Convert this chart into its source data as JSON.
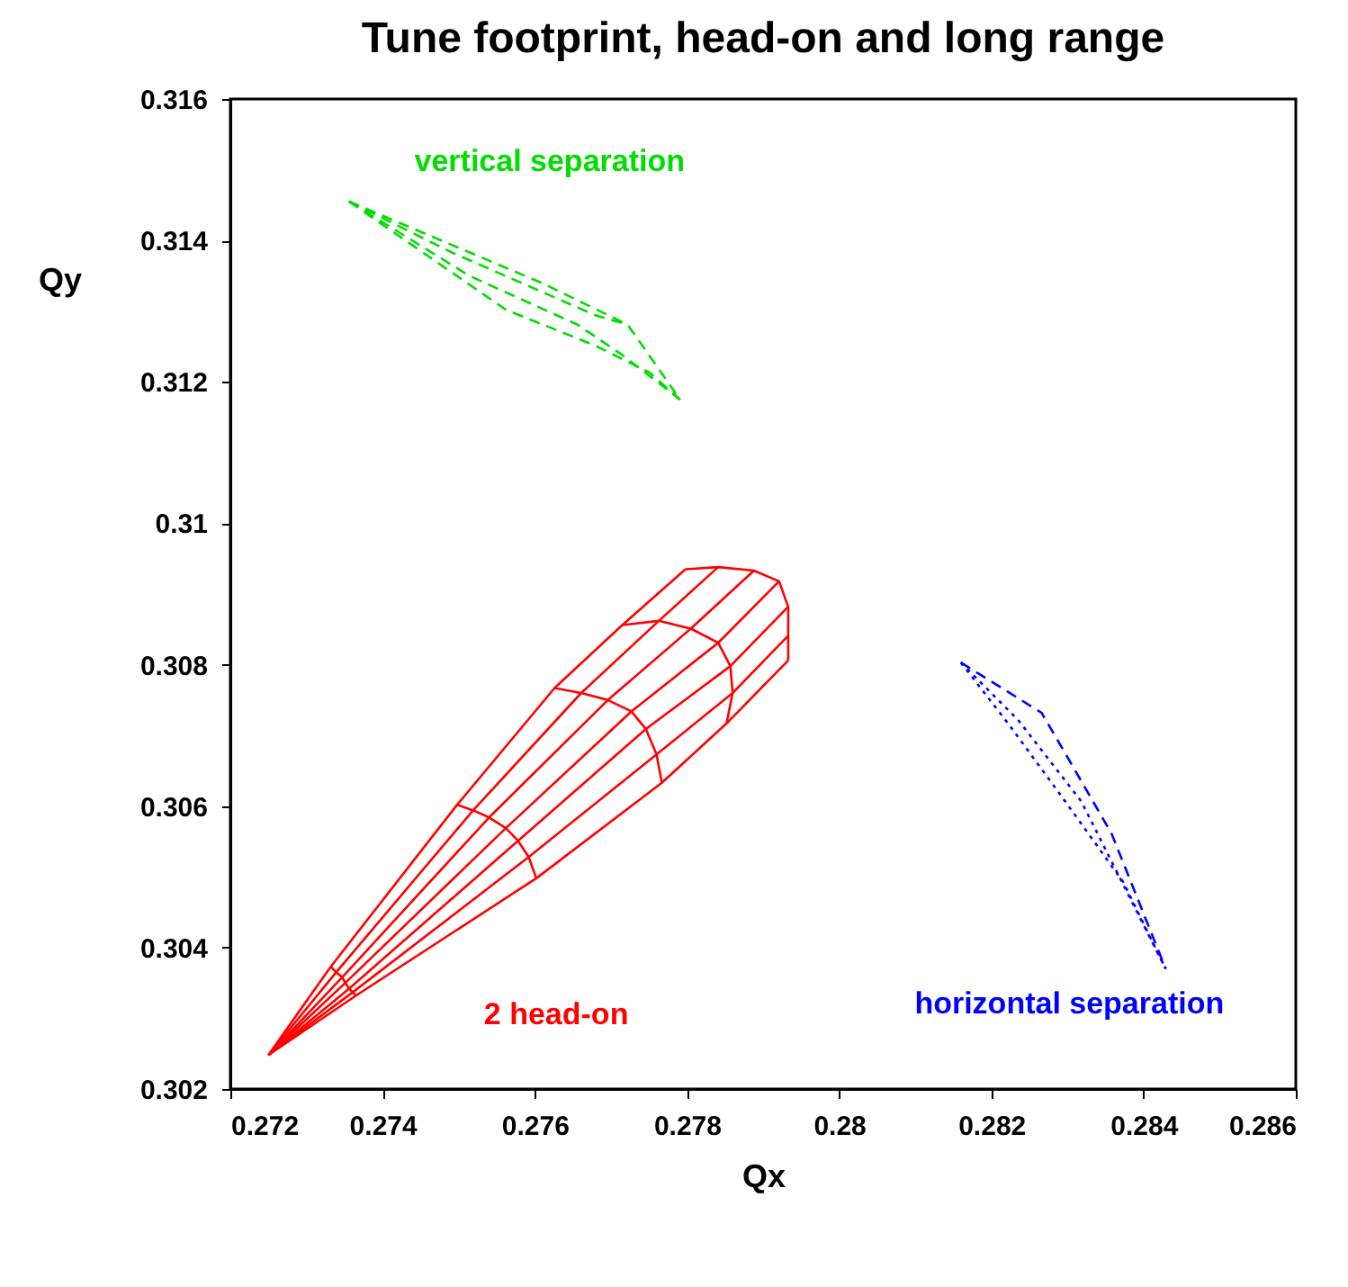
{
  "chart_data": {
    "type": "line",
    "title": "Tune footprint, head-on and long range",
    "xlabel": "Qx",
    "ylabel": "Qy",
    "xlim": [
      0.272,
      0.286
    ],
    "xticks": [
      0.272,
      0.274,
      0.276,
      0.278,
      0.28,
      0.282,
      0.284,
      0.286
    ],
    "ylim": [
      0.302,
      0.316
    ],
    "yticks": [
      0.302,
      0.304,
      0.306,
      0.308,
      0.31,
      0.312,
      0.314,
      0.316
    ],
    "grid": false,
    "marker": "none",
    "series": [
      {
        "color": "#ff0000",
        "line_style": "solid",
        "x": [
          0.2725,
          0.27332,
          0.27498,
          0.27626,
          0.27715,
          0.27798
        ],
        "values": [
          0.30248,
          0.30373,
          0.30602,
          0.30767,
          0.30856,
          0.30935
        ]
      },
      {
        "color": "#ff0000",
        "line_style": "solid",
        "x": [
          0.2725,
          0.27339,
          0.27519,
          0.27661,
          0.27763,
          0.27841
        ],
        "values": [
          0.30248,
          0.30365,
          0.30594,
          0.3076,
          0.30862,
          0.30938
        ]
      },
      {
        "color": "#ff0000",
        "line_style": "solid",
        "x": [
          0.2725,
          0.27347,
          0.2754,
          0.27696,
          0.27805,
          0.27888
        ],
        "values": [
          0.30248,
          0.30358,
          0.30584,
          0.3075,
          0.30851,
          0.30933
        ]
      },
      {
        "color": "#ff0000",
        "line_style": "solid",
        "x": [
          0.2725,
          0.27351,
          0.27562,
          0.27727,
          0.27841,
          0.27921
        ],
        "values": [
          0.30248,
          0.3035,
          0.30569,
          0.30734,
          0.30831,
          0.30918
        ]
      },
      {
        "color": "#ff0000",
        "line_style": "solid",
        "x": [
          0.2725,
          0.27356,
          0.27578,
          0.27746,
          0.27857,
          0.27933
        ],
        "values": [
          0.30248,
          0.30342,
          0.30551,
          0.30709,
          0.30798,
          0.30882
        ]
      },
      {
        "color": "#ff0000",
        "line_style": "solid",
        "x": [
          0.2725,
          0.27361,
          0.27592,
          0.2776,
          0.2786,
          0.27933
        ],
        "values": [
          0.30248,
          0.30337,
          0.30528,
          0.30673,
          0.3076,
          0.30841
        ]
      },
      {
        "name": "2 head-on",
        "color": "#ff0000",
        "line_style": "solid",
        "x": [
          0.2725,
          0.27365,
          0.27602,
          0.27767,
          0.27852,
          0.27933
        ],
        "values": [
          0.30248,
          0.30332,
          0.30498,
          0.30633,
          0.30717,
          0.30806
        ]
      },
      {
        "color": "#ff0000",
        "line_style": "solid",
        "x": [
          0.27332,
          0.27339,
          0.27347,
          0.27351,
          0.27356,
          0.27361,
          0.27365
        ],
        "values": [
          0.30373,
          0.30365,
          0.30358,
          0.3035,
          0.30342,
          0.30337,
          0.30332
        ]
      },
      {
        "color": "#ff0000",
        "line_style": "solid",
        "x": [
          0.27498,
          0.27519,
          0.2754,
          0.27562,
          0.27578,
          0.27592,
          0.27602
        ],
        "values": [
          0.30602,
          0.30594,
          0.30584,
          0.30569,
          0.30551,
          0.30528,
          0.30498
        ]
      },
      {
        "color": "#ff0000",
        "line_style": "solid",
        "x": [
          0.27626,
          0.27661,
          0.27696,
          0.27727,
          0.27746,
          0.2776,
          0.27767
        ],
        "values": [
          0.30767,
          0.3076,
          0.3075,
          0.30734,
          0.30709,
          0.30673,
          0.30633
        ]
      },
      {
        "color": "#ff0000",
        "line_style": "solid",
        "x": [
          0.27715,
          0.27763,
          0.27805,
          0.27841,
          0.27857,
          0.2786,
          0.27852
        ],
        "values": [
          0.30856,
          0.30862,
          0.30851,
          0.30831,
          0.30798,
          0.3076,
          0.30717
        ]
      },
      {
        "color": "#ff0000",
        "line_style": "solid",
        "x": [
          0.27798,
          0.27841,
          0.27888,
          0.27921,
          0.27933,
          0.27933,
          0.27933
        ],
        "values": [
          0.30935,
          0.30938,
          0.30933,
          0.30918,
          0.30882,
          0.30841,
          0.30806
        ]
      },
      {
        "name": "vertical separation",
        "color": "#00dd00",
        "line_style": "dashed",
        "x": [
          0.27356,
          0.27609,
          0.27722,
          0.27791
        ],
        "values": [
          0.31455,
          0.3134,
          0.31281,
          0.31175
        ]
      },
      {
        "color": "#00dd00",
        "line_style": "dashed",
        "x": [
          0.27356,
          0.27491,
          0.2768,
          0.27722
        ],
        "values": [
          0.31455,
          0.31383,
          0.31294,
          0.31281
        ]
      },
      {
        "color": "#00dd00",
        "line_style": "dashed",
        "x": [
          0.27356,
          0.27514,
          0.27656,
          0.27715,
          0.27791
        ],
        "values": [
          0.31455,
          0.3135,
          0.31281,
          0.31238,
          0.31175
        ]
      },
      {
        "color": "#00dd00",
        "line_style": "dashed",
        "x": [
          0.27356,
          0.27562,
          0.2768,
          0.27751,
          0.27791
        ],
        "values": [
          0.31455,
          0.31302,
          0.31251,
          0.31213,
          0.31175
        ]
      },
      {
        "name": "horizontal separation",
        "color": "#0000ff",
        "line_style": "dashed",
        "x": [
          0.2816,
          0.28266,
          0.28299,
          0.28358,
          0.28429
        ],
        "values": [
          0.30803,
          0.30732,
          0.30671,
          0.30561,
          0.3037
        ]
      },
      {
        "color": "#0000ff",
        "line_style": "dotted",
        "x": [
          0.2816,
          0.28224,
          0.28288,
          0.28373,
          0.28429
        ],
        "values": [
          0.30803,
          0.30714,
          0.3062,
          0.30493,
          0.3037
        ]
      },
      {
        "color": "#0000ff",
        "line_style": "dotted",
        "x": [
          0.2816,
          0.28235,
          0.28318,
          0.28429
        ],
        "values": [
          0.30803,
          0.30722,
          0.30607,
          0.3037
        ]
      }
    ]
  }
}
